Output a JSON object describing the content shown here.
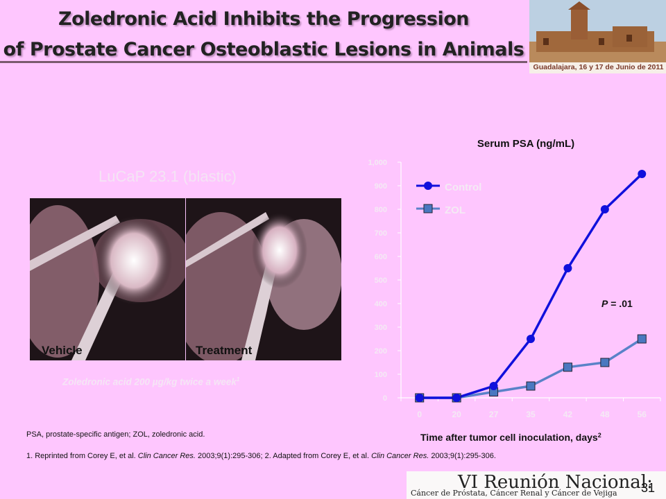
{
  "slide": {
    "title_line1": "Zoledronic Acid Inhibits the Progression",
    "title_line2": "of Prostate Cancer Osteoblastic Lesions in Animals",
    "logo_top_caption": "Guadalajara, 16 y 17 de Junio de 2011",
    "subtitle": "LuCaP 23.1 (blastic)",
    "image_labels": [
      "Vehicle",
      "Treatment"
    ],
    "image_caption": "Zoledronic acid 200 µg/kg twice a week",
    "image_caption_ref": "1",
    "abbreviations": "PSA, prostate-specific antigen; ZOL, zoledronic acid.",
    "ref1_prefix": "1. Reprinted from Corey E, et al.",
    "ref1_journal": "Clin Cancer Res.",
    "ref1_suffix": "2003;9(1):295-306;  2. Adapted from Corey E, et al.",
    "ref2_journal": "Clin Cancer Res.",
    "ref2_suffix": "2003;9(1):295-306.",
    "logo_bottom_title": "VI Reunión Nacional:",
    "logo_bottom_subtitle": "Cáncer de Próstata, Cáncer Renal y Cáncer de Vejiga",
    "page_number": "31"
  },
  "colors": {
    "background": "#fec6fe",
    "control": "#1010dc",
    "zol": "#5a82c8",
    "zol_marker": "#4a78c0"
  },
  "chart_data": {
    "type": "line",
    "title": "Serum PSA (ng/mL)",
    "xlabel": "Time after tumor cell inoculation, days",
    "xlabel_ref": "2",
    "ylabel": "",
    "categories": [
      "0",
      "20",
      "27",
      "35",
      "42",
      "48",
      "56"
    ],
    "yticks": [
      "0",
      "100",
      "200",
      "300",
      "400",
      "500",
      "600",
      "700",
      "800",
      "900",
      "1,000"
    ],
    "ylim": [
      0,
      1000
    ],
    "series": [
      {
        "name": "Control",
        "marker": "circle",
        "values": [
          0,
          0,
          50,
          250,
          550,
          800,
          950
        ]
      },
      {
        "name": "ZOL",
        "marker": "square",
        "values": [
          0,
          0,
          25,
          50,
          130,
          150,
          250
        ]
      }
    ],
    "annotation_p": "P",
    "annotation_value": " = .01",
    "legend_position": "top-left"
  }
}
